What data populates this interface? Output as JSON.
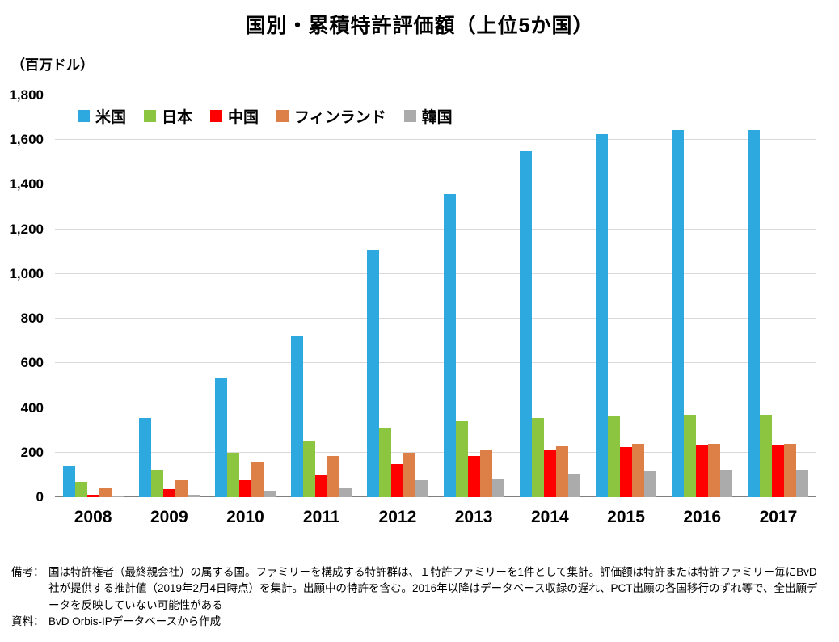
{
  "chart_data": {
    "type": "bar",
    "title": "国別・累積特許評価額（上位5か国）",
    "unit_label": "（百万ドル）",
    "xlabel": "",
    "ylabel": "（百万ドル）",
    "ylim": [
      0,
      1800
    ],
    "ytick_step": 200,
    "grid": true,
    "legend_position": "top-left-inside",
    "categories": [
      "2008",
      "2009",
      "2010",
      "2011",
      "2012",
      "2013",
      "2014",
      "2015",
      "2016",
      "2017"
    ],
    "series": [
      {
        "name": "米国",
        "key": "usa",
        "color": "#2EA9DF",
        "values": [
          140,
          355,
          535,
          725,
          1110,
          1360,
          1550,
          1625,
          1645,
          1645
        ]
      },
      {
        "name": "日本",
        "key": "japan",
        "color": "#8CC540",
        "values": [
          70,
          125,
          200,
          250,
          310,
          340,
          355,
          365,
          370,
          370
        ]
      },
      {
        "name": "中国",
        "key": "china",
        "color": "#FF0000",
        "values": [
          10,
          35,
          75,
          100,
          150,
          185,
          210,
          225,
          235,
          235
        ]
      },
      {
        "name": "フィンランド",
        "key": "finland",
        "color": "#DD8047",
        "values": [
          45,
          75,
          160,
          185,
          200,
          215,
          230,
          240,
          240,
          240
        ]
      },
      {
        "name": "韓国",
        "key": "korea",
        "color": "#ABABAB",
        "values": [
          8,
          12,
          30,
          45,
          75,
          85,
          105,
          120,
          122,
          122
        ]
      }
    ]
  },
  "notes": {
    "biko_label": "備考：",
    "biko_text": "国は特許権者（最終親会社）の属する国。ファミリーを構成する特許群は、１特許ファミリーを1件として集計。評価額は特許または特許ファミリー毎にBvD社が提供する推計値（2019年2月4日時点）を集計。出願中の特許を含む。2016年以降はデータベース収録の遅れ、PCT出願の各国移行のずれ等で、全出願データを反映していない可能性がある",
    "source_label": "資料：",
    "source_text": "BvD Orbis-IPデータベースから作成"
  }
}
